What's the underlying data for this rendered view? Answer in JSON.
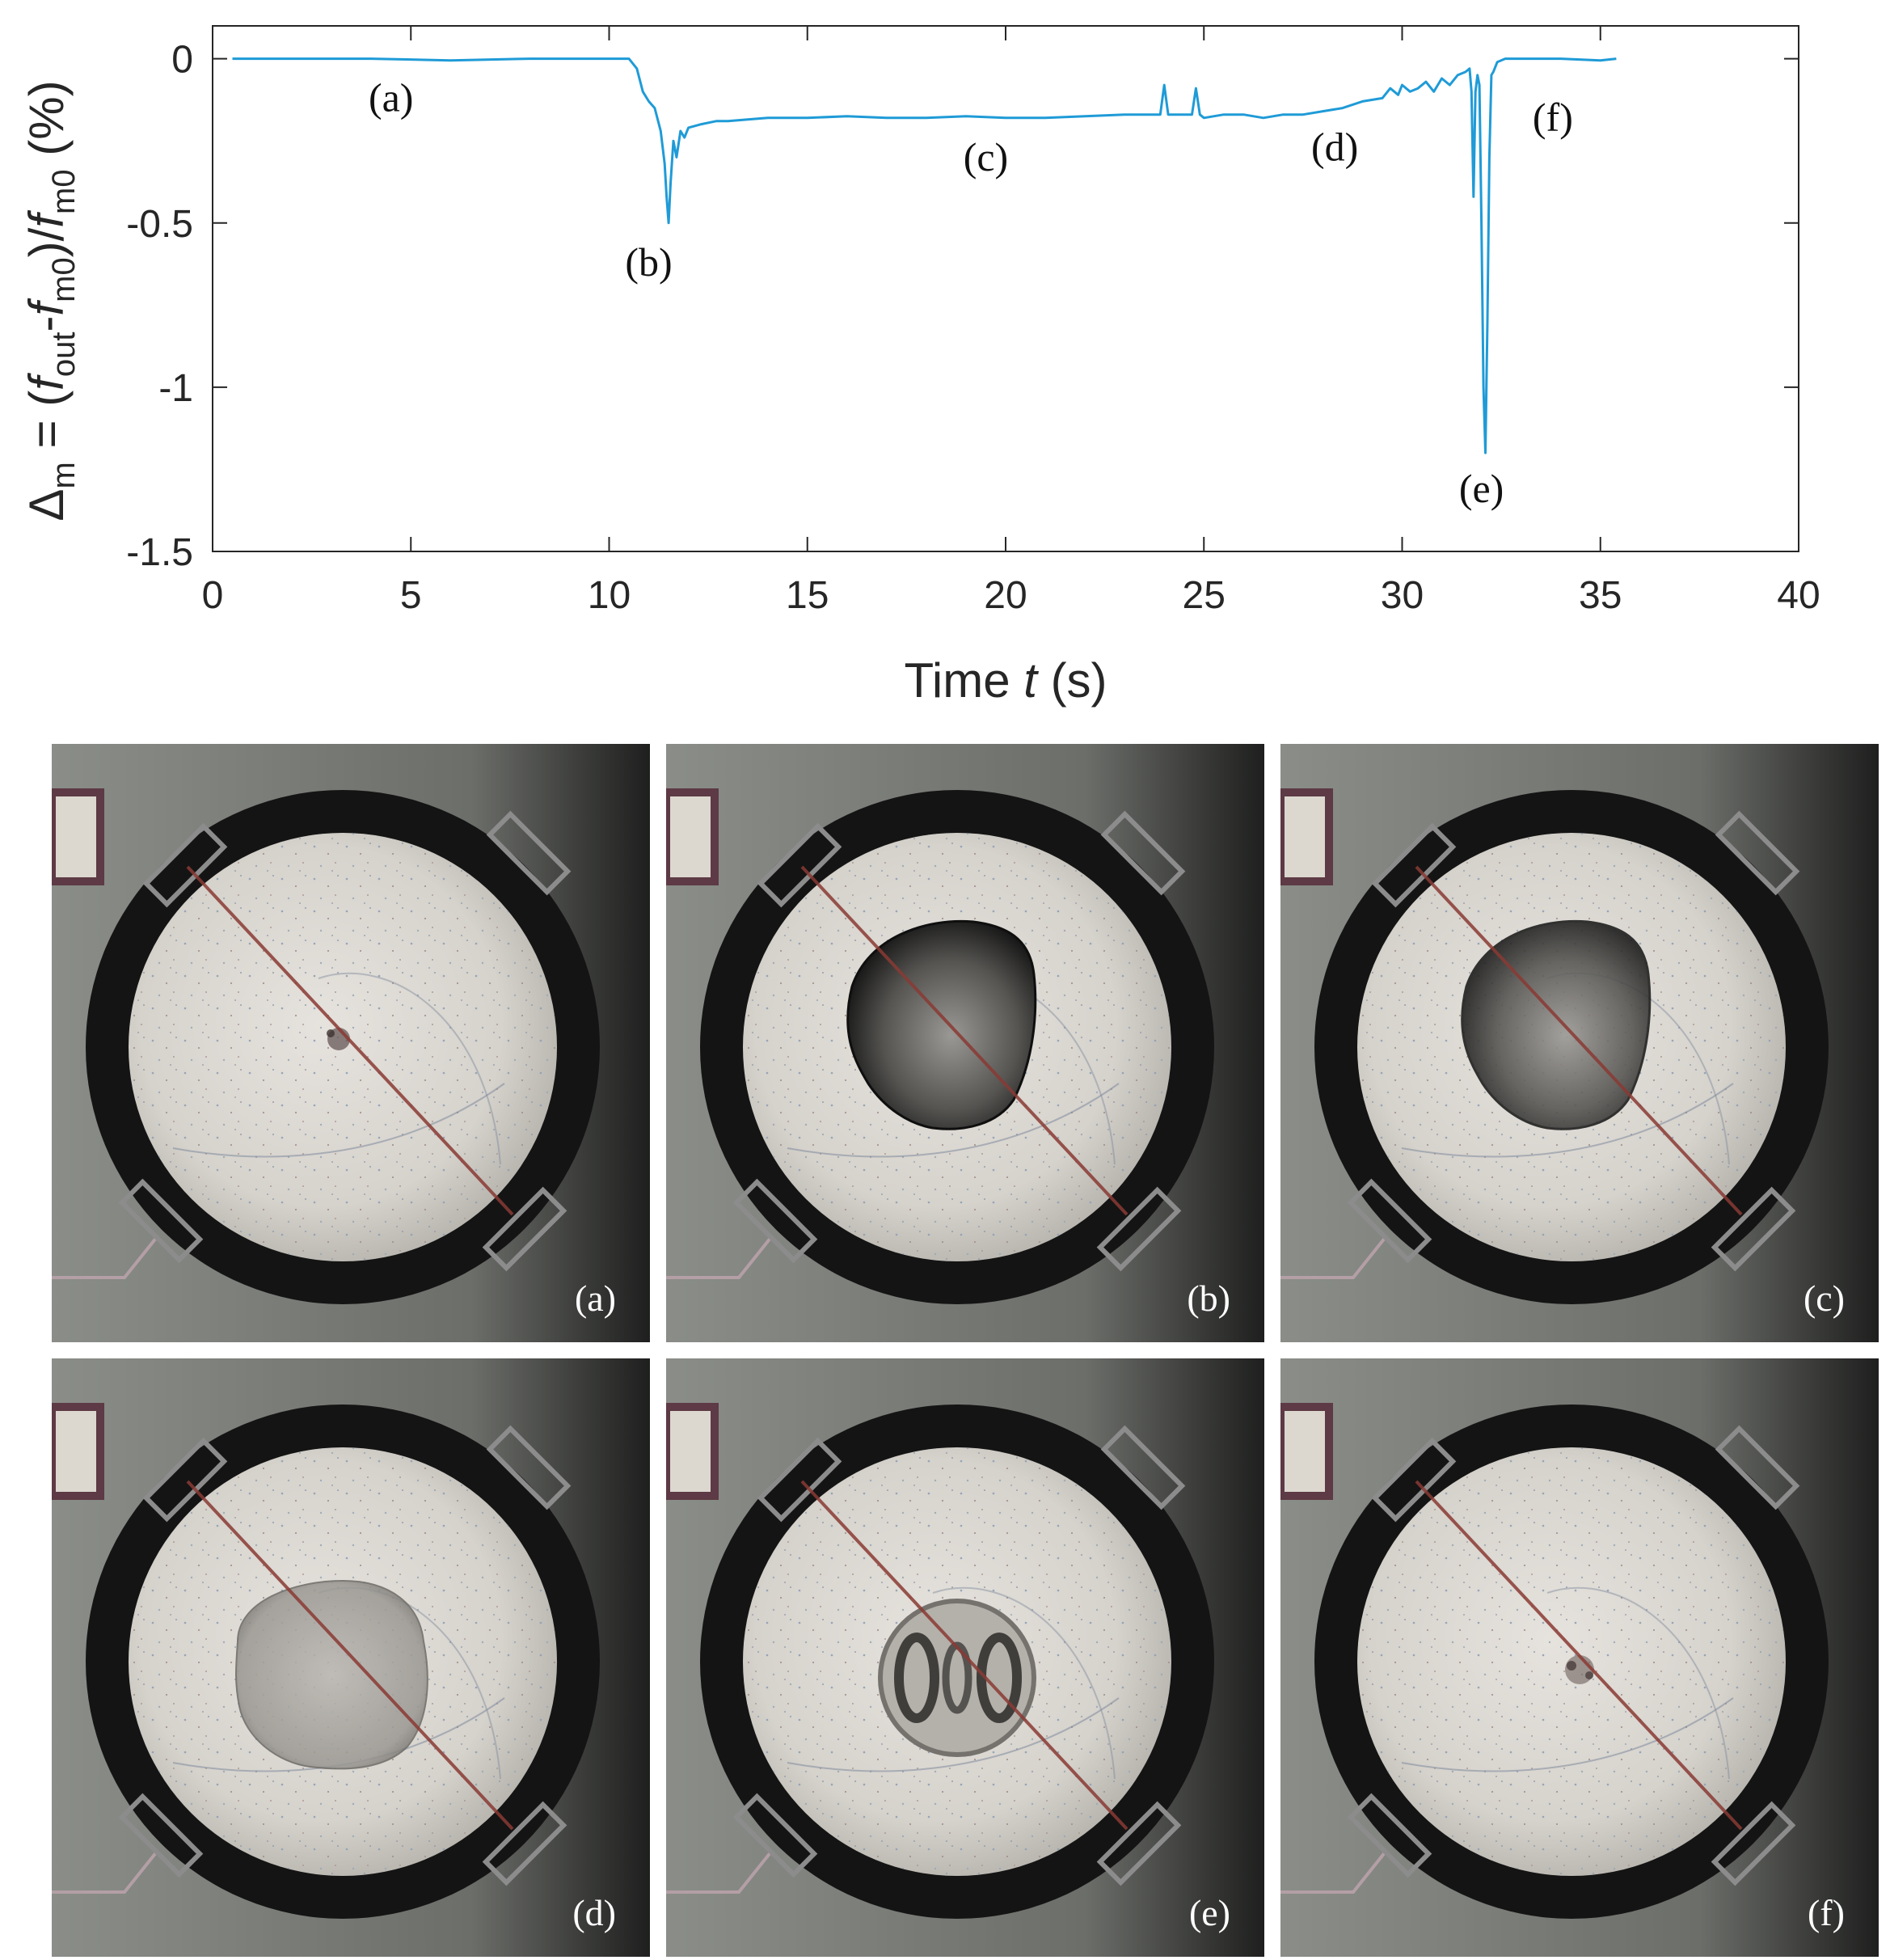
{
  "chart_data": {
    "type": "line",
    "title": "",
    "xlabel_prefix": "Time ",
    "xlabel_var": "t",
    "xlabel_suffix": " (s)",
    "ylabel": "Δm = (fout - fm0)/fm0 (%)",
    "ylabel_parts": {
      "delta": "Δ",
      "m": "m",
      "eq": " = (",
      "f1": "f",
      "out": "out",
      "minus": "-",
      "f2": "f",
      "m0a": "m0",
      "close": ")/",
      "f3": "f",
      "m0b": "m0",
      "pct": " (%)"
    },
    "xlim": [
      0,
      40
    ],
    "ylim": [
      -1.5,
      0.1
    ],
    "xticks": [
      0,
      5,
      10,
      15,
      20,
      25,
      30,
      35,
      40
    ],
    "xtick_labels": [
      "0",
      "5",
      "10",
      "15",
      "20",
      "25",
      "30",
      "35",
      "40"
    ],
    "yticks": [
      0,
      -0.5,
      -1,
      -1.5
    ],
    "ytick_labels": [
      "0",
      "-0.5",
      "-1",
      "-1.5"
    ],
    "line_color": "#1f9bd7",
    "series": [
      {
        "name": "Δm",
        "x": [
          0.5,
          2,
          4,
          6,
          8,
          10,
          10.5,
          10.7,
          10.85,
          11.0,
          11.15,
          11.3,
          11.4,
          11.45,
          11.5,
          11.55,
          11.62,
          11.7,
          11.8,
          11.9,
          12.0,
          12.3,
          12.7,
          13,
          14,
          15,
          16,
          17,
          18,
          19,
          20,
          21,
          22,
          23,
          23.9,
          24.0,
          24.1,
          24.2,
          24.5,
          24.7,
          24.8,
          24.9,
          25.0,
          25.5,
          26,
          26.5,
          27,
          27.5,
          28,
          28.5,
          29,
          29.5,
          29.7,
          29.9,
          30,
          30.2,
          30.4,
          30.6,
          30.8,
          31,
          31.2,
          31.4,
          31.6,
          31.7,
          31.75,
          31.8,
          31.85,
          31.9,
          31.95,
          32.0,
          32.05,
          32.1,
          32.15,
          32.2,
          32.25,
          32.3,
          32.4,
          32.6,
          33,
          34,
          35,
          35.4
        ],
        "y": [
          0,
          0,
          0,
          -0.005,
          0,
          0,
          0,
          -0.03,
          -0.1,
          -0.13,
          -0.15,
          -0.22,
          -0.32,
          -0.42,
          -0.5,
          -0.38,
          -0.25,
          -0.3,
          -0.22,
          -0.24,
          -0.21,
          -0.2,
          -0.19,
          -0.19,
          -0.18,
          -0.18,
          -0.175,
          -0.18,
          -0.18,
          -0.175,
          -0.18,
          -0.18,
          -0.175,
          -0.17,
          -0.17,
          -0.08,
          -0.17,
          -0.17,
          -0.17,
          -0.17,
          -0.09,
          -0.17,
          -0.18,
          -0.17,
          -0.17,
          -0.18,
          -0.17,
          -0.17,
          -0.16,
          -0.15,
          -0.13,
          -0.12,
          -0.09,
          -0.11,
          -0.08,
          -0.1,
          -0.09,
          -0.07,
          -0.1,
          -0.06,
          -0.08,
          -0.05,
          -0.04,
          -0.03,
          -0.1,
          -0.42,
          -0.1,
          -0.05,
          -0.08,
          -0.5,
          -1.0,
          -1.2,
          -0.8,
          -0.3,
          -0.05,
          -0.04,
          -0.01,
          0,
          0,
          0,
          -0.005,
          0
        ]
      }
    ],
    "annotations": [
      {
        "text": "(a)",
        "x": 4.5,
        "y": -0.16
      },
      {
        "text": "(b)",
        "x": 11.0,
        "y": -0.66
      },
      {
        "text": "(c)",
        "x": 19.5,
        "y": -0.34
      },
      {
        "text": "(d)",
        "x": 28.3,
        "y": -0.31
      },
      {
        "text": "(e)",
        "x": 32.0,
        "y": -1.35
      },
      {
        "text": "(f)",
        "x": 33.8,
        "y": -0.22
      }
    ]
  },
  "panels": [
    {
      "label": "(a)",
      "drop": "none"
    },
    {
      "label": "(b)",
      "drop": "dark"
    },
    {
      "label": "(c)",
      "drop": "dark2"
    },
    {
      "label": "(d)",
      "drop": "light"
    },
    {
      "label": "(e)",
      "drop": "rings"
    },
    {
      "label": "(f)",
      "drop": "residue"
    }
  ]
}
